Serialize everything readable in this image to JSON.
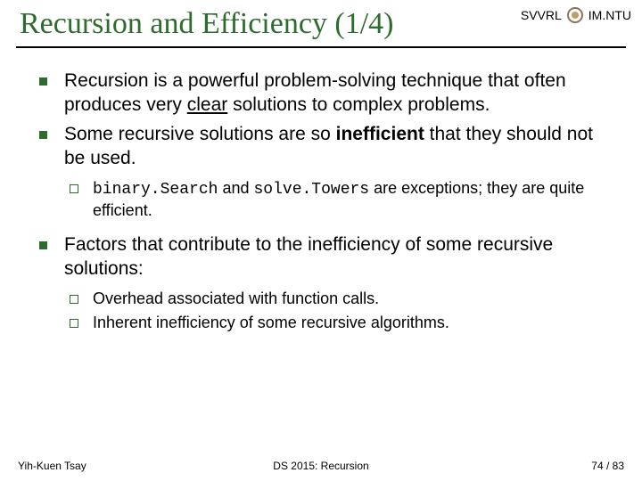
{
  "header": {
    "org_left": "SVVRL",
    "at": "@",
    "org_right": "IM.NTU"
  },
  "title": "Recursion and Efficiency (1/4)",
  "bullets": [
    {
      "pre": "Recursion is a powerful problem-solving technique that often produces very ",
      "underline": "clear",
      "post": " solutions to complex problems."
    },
    {
      "pre": "Some recursive solutions are so ",
      "bold": "inefficient",
      "post": " that they should not be used."
    }
  ],
  "sub1": {
    "code1": "binary.Search",
    "mid": " and ",
    "code2": "solve.Towers",
    "post": " are exceptions; they are quite efficient."
  },
  "bullet3": "Factors that contribute to the inefficiency of some recursive solutions:",
  "sub2": [
    "Overhead associated with function calls.",
    "Inherent inefficiency of some recursive algorithms."
  ],
  "footer": {
    "left": "Yih-Kuen Tsay",
    "center": "DS 2015: Recursion",
    "right": "74 / 83"
  }
}
